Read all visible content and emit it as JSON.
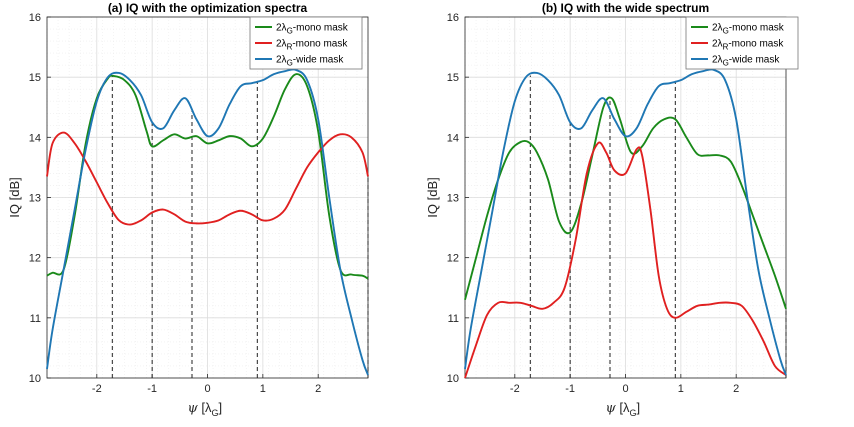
{
  "chart_data": [
    {
      "type": "line",
      "title": "(a) IQ with the optimization spectra",
      "xlabel_symbol": "ψ",
      "xlabel_unit": "λ",
      "xlabel_unit_sub": "G",
      "ylabel": "IQ [dB]",
      "xlim": [
        -2.9,
        2.9
      ],
      "ylim": [
        10,
        16
      ],
      "xticks": [
        -2,
        -1,
        0,
        1,
        2
      ],
      "yticks": [
        10,
        11,
        12,
        13,
        14,
        15,
        16
      ],
      "grid": true,
      "legend_position": "top-right",
      "vlines": [
        -1.72,
        -1.0,
        -0.28,
        0.9,
        2.9
      ],
      "series": [
        {
          "name_prefix": "2λ",
          "name_sub": "G",
          "name_suffix": "-mono mask",
          "color": "#1a8a1a",
          "x": [
            -2.9,
            -2.8,
            -2.6,
            -2.4,
            -2.2,
            -2.0,
            -1.8,
            -1.7,
            -1.5,
            -1.3,
            -1.1,
            -1.0,
            -0.8,
            -0.6,
            -0.4,
            -0.2,
            0.0,
            0.2,
            0.4,
            0.6,
            0.8,
            1.0,
            1.2,
            1.4,
            1.6,
            1.8,
            2.0,
            2.2,
            2.4,
            2.6,
            2.8,
            2.9
          ],
          "y": [
            11.7,
            11.75,
            11.8,
            12.7,
            13.9,
            14.65,
            14.98,
            15.02,
            14.95,
            14.7,
            14.1,
            13.85,
            13.95,
            14.05,
            13.98,
            14.02,
            13.9,
            13.95,
            14.02,
            13.98,
            13.85,
            13.98,
            14.35,
            14.8,
            15.05,
            14.85,
            14.1,
            12.7,
            11.8,
            11.72,
            11.7,
            11.65
          ]
        },
        {
          "name_prefix": "2λ",
          "name_sub": "R",
          "name_suffix": "-mono mask",
          "color": "#e02020",
          "x": [
            -2.9,
            -2.8,
            -2.6,
            -2.4,
            -2.2,
            -2.0,
            -1.8,
            -1.6,
            -1.4,
            -1.2,
            -1.0,
            -0.8,
            -0.6,
            -0.4,
            -0.2,
            0.0,
            0.2,
            0.4,
            0.6,
            0.8,
            1.0,
            1.2,
            1.4,
            1.6,
            1.8,
            2.0,
            2.2,
            2.4,
            2.6,
            2.8,
            2.9
          ],
          "y": [
            13.35,
            13.9,
            14.08,
            13.9,
            13.6,
            13.25,
            12.9,
            12.62,
            12.55,
            12.62,
            12.75,
            12.8,
            12.72,
            12.6,
            12.57,
            12.58,
            12.62,
            12.72,
            12.78,
            12.72,
            12.62,
            12.65,
            12.8,
            13.15,
            13.5,
            13.75,
            13.95,
            14.05,
            14.0,
            13.75,
            13.35
          ]
        },
        {
          "name_prefix": "2λ",
          "name_sub": "G",
          "name_suffix": "-wide mask",
          "color": "#1f77b4",
          "x": [
            -2.9,
            -2.8,
            -2.6,
            -2.4,
            -2.2,
            -2.0,
            -1.8,
            -1.6,
            -1.4,
            -1.2,
            -1.0,
            -0.8,
            -0.6,
            -0.4,
            -0.2,
            0.0,
            0.2,
            0.4,
            0.6,
            0.8,
            1.0,
            1.2,
            1.4,
            1.6,
            1.8,
            2.0,
            2.2,
            2.4,
            2.6,
            2.8,
            2.9
          ],
          "y": [
            10.15,
            10.8,
            11.8,
            12.8,
            13.8,
            14.6,
            15.0,
            15.07,
            14.95,
            14.7,
            14.25,
            14.15,
            14.45,
            14.65,
            14.3,
            14.02,
            14.15,
            14.55,
            14.85,
            14.9,
            14.95,
            15.05,
            15.1,
            15.12,
            14.95,
            14.3,
            13.0,
            11.8,
            11.0,
            10.3,
            10.05
          ]
        }
      ]
    },
    {
      "type": "line",
      "title": "(b) IQ with the wide spectrum",
      "xlabel_symbol": "ψ",
      "xlabel_unit": "λ",
      "xlabel_unit_sub": "G",
      "ylabel": "IQ [dB]",
      "xlim": [
        -2.9,
        2.9
      ],
      "ylim": [
        10,
        16
      ],
      "xticks": [
        -2,
        -1,
        0,
        1,
        2
      ],
      "yticks": [
        10,
        11,
        12,
        13,
        14,
        15,
        16
      ],
      "grid": true,
      "legend_position": "top-right",
      "vlines": [
        -1.72,
        -1.0,
        -0.28,
        0.9,
        2.9
      ],
      "series": [
        {
          "name_prefix": "2λ",
          "name_sub": "G",
          "name_suffix": "-mono mask",
          "color": "#1a8a1a",
          "x": [
            -2.9,
            -2.7,
            -2.5,
            -2.3,
            -2.1,
            -1.9,
            -1.75,
            -1.6,
            -1.4,
            -1.2,
            -1.0,
            -0.8,
            -0.6,
            -0.4,
            -0.25,
            -0.1,
            0.1,
            0.3,
            0.5,
            0.7,
            0.9,
            1.1,
            1.3,
            1.5,
            1.7,
            1.9,
            2.1,
            2.3,
            2.5,
            2.7,
            2.9
          ],
          "y": [
            11.3,
            12.0,
            12.7,
            13.3,
            13.75,
            13.92,
            13.92,
            13.75,
            13.3,
            12.6,
            12.42,
            12.9,
            13.7,
            14.5,
            14.65,
            14.3,
            13.75,
            13.85,
            14.15,
            14.3,
            14.3,
            14.0,
            13.72,
            13.7,
            13.7,
            13.6,
            13.2,
            12.7,
            12.2,
            11.7,
            11.15
          ]
        },
        {
          "name_prefix": "2λ",
          "name_sub": "R",
          "name_suffix": "-mono mask",
          "color": "#e02020",
          "x": [
            -2.9,
            -2.7,
            -2.5,
            -2.3,
            -2.1,
            -1.9,
            -1.7,
            -1.5,
            -1.3,
            -1.1,
            -0.9,
            -0.7,
            -0.5,
            -0.35,
            -0.2,
            0.0,
            0.2,
            0.3,
            0.45,
            0.6,
            0.75,
            0.9,
            1.1,
            1.3,
            1.5,
            1.7,
            1.9,
            2.1,
            2.3,
            2.5,
            2.7,
            2.9
          ],
          "y": [
            10.0,
            10.55,
            11.05,
            11.25,
            11.25,
            11.25,
            11.2,
            11.15,
            11.25,
            11.5,
            12.3,
            13.4,
            13.9,
            13.75,
            13.45,
            13.4,
            13.8,
            13.7,
            12.8,
            11.7,
            11.15,
            11.0,
            11.1,
            11.2,
            11.22,
            11.25,
            11.25,
            11.2,
            10.95,
            10.6,
            10.2,
            10.05
          ]
        },
        {
          "name_prefix": "2λ",
          "name_sub": "G",
          "name_suffix": "-wide mask",
          "color": "#1f77b4",
          "x": [
            -2.9,
            -2.8,
            -2.6,
            -2.4,
            -2.2,
            -2.0,
            -1.8,
            -1.6,
            -1.4,
            -1.2,
            -1.0,
            -0.8,
            -0.6,
            -0.4,
            -0.2,
            0.0,
            0.2,
            0.4,
            0.6,
            0.8,
            1.0,
            1.2,
            1.4,
            1.6,
            1.8,
            2.0,
            2.2,
            2.4,
            2.6,
            2.8,
            2.9
          ],
          "y": [
            10.15,
            10.8,
            11.8,
            12.8,
            13.8,
            14.6,
            15.0,
            15.07,
            14.95,
            14.7,
            14.25,
            14.15,
            14.45,
            14.65,
            14.3,
            14.02,
            14.15,
            14.55,
            14.85,
            14.9,
            14.95,
            15.05,
            15.1,
            15.12,
            14.95,
            14.3,
            13.0,
            11.8,
            11.0,
            10.3,
            10.05
          ]
        }
      ]
    }
  ]
}
